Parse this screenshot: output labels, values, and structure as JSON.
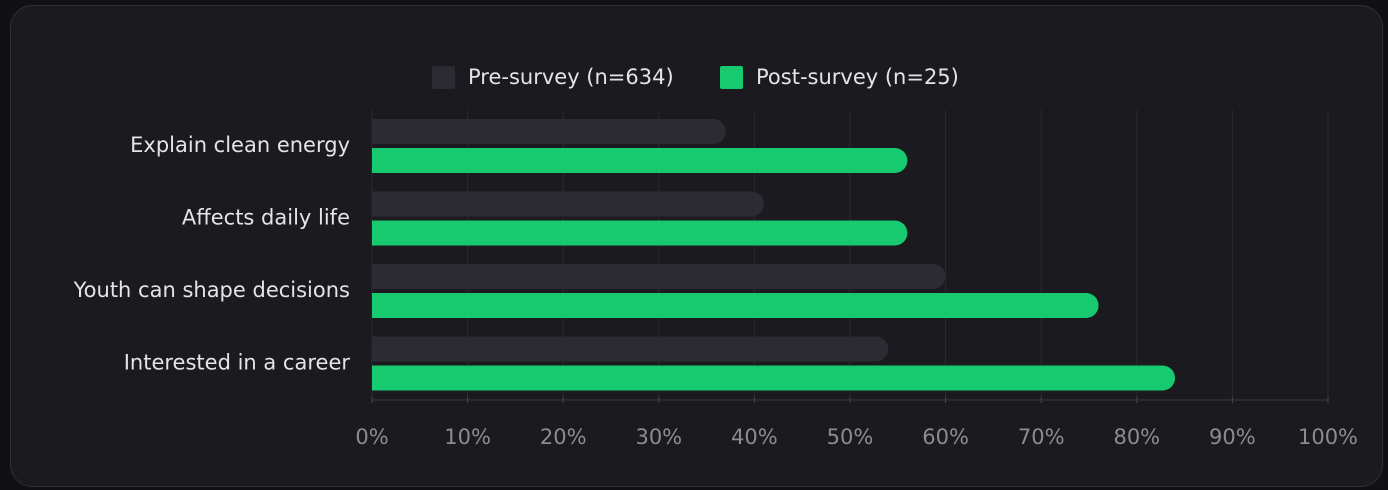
{
  "chart_data": {
    "type": "bar",
    "orientation": "horizontal",
    "categories": [
      "Explain clean energy",
      "Affects daily life",
      "Youth can shape decisions",
      "Interested in a career"
    ],
    "series": [
      {
        "name": "Pre-survey (n=634)",
        "color": "#2c2b33",
        "values": [
          37,
          41,
          60,
          54
        ]
      },
      {
        "name": "Post-survey (n=25)",
        "color": "#17c96f",
        "values": [
          56,
          56,
          76,
          84
        ]
      }
    ],
    "xlim": [
      0,
      100
    ],
    "xticks": [
      {
        "value": 0,
        "label": "0%"
      },
      {
        "value": 10,
        "label": "10%"
      },
      {
        "value": 20,
        "label": "20%"
      },
      {
        "value": 30,
        "label": "30%"
      },
      {
        "value": 40,
        "label": "40%"
      },
      {
        "value": 50,
        "label": "50%"
      },
      {
        "value": 60,
        "label": "60%"
      },
      {
        "value": 70,
        "label": "70%"
      },
      {
        "value": 80,
        "label": "80%"
      },
      {
        "value": 90,
        "label": "90%"
      },
      {
        "value": 100,
        "label": "100%"
      }
    ],
    "grid": true,
    "legend": "top"
  }
}
